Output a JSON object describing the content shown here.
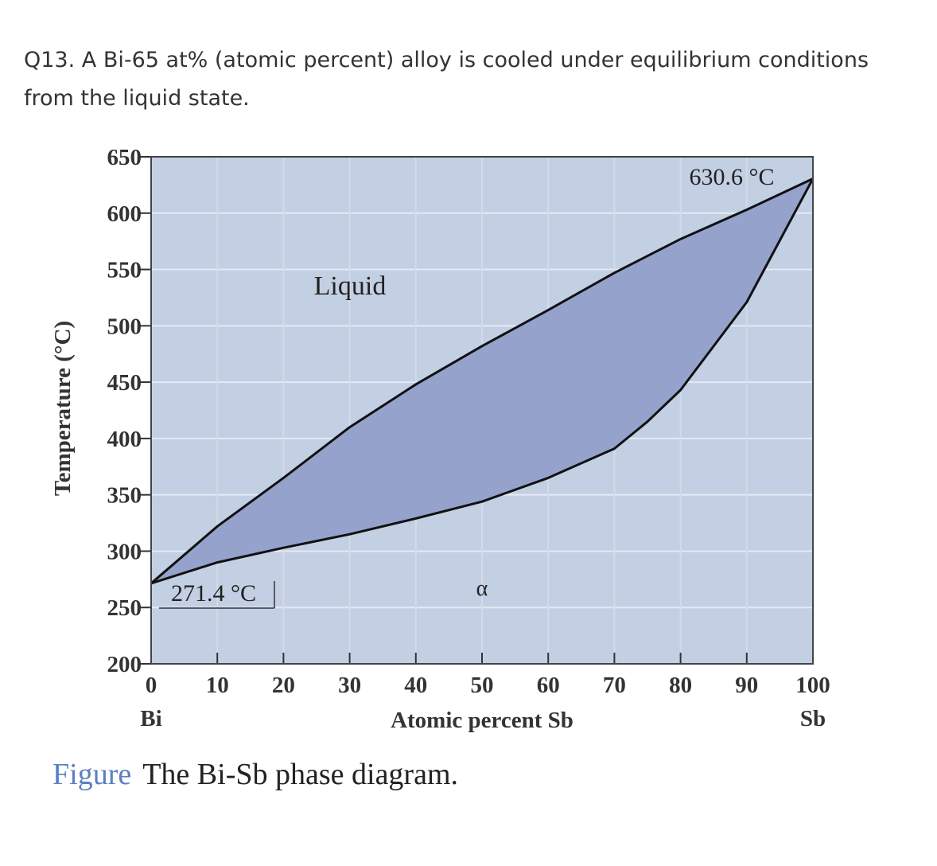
{
  "question": {
    "lines": [
      "Q13. A Bi-65 at% (atomic percent) alloy is cooled under equilibrium conditions",
      "from the liquid state."
    ]
  },
  "chart_data": {
    "type": "line",
    "ylabel": "Temperature (°C)",
    "xlabel": "Atomic percent Sb",
    "x_end_labels": [
      "Bi",
      "Sb"
    ],
    "annotations": [
      "Liquid",
      "α",
      "271.4 °C",
      "630.6 °C"
    ],
    "xlim": [
      0,
      100
    ],
    "xticks": [
      0,
      10,
      20,
      30,
      40,
      50,
      60,
      70,
      80,
      90,
      100
    ],
    "ylim": [
      200,
      650
    ],
    "yticks": [
      200,
      250,
      300,
      350,
      400,
      450,
      500,
      550,
      600,
      650
    ],
    "grid": true,
    "fill_between": true,
    "fill_color": "#95a3cc",
    "background": "#c3cfe3",
    "series": [
      {
        "color": "#111111",
        "x": [
          0,
          10,
          20,
          30,
          40,
          50,
          60,
          70,
          80,
          90,
          100
        ],
        "values": [
          271.4,
          322,
          365,
          410,
          448,
          482,
          514,
          547,
          577,
          603,
          630.6
        ]
      },
      {
        "color": "#111111",
        "x": [
          0,
          10,
          20,
          30,
          40,
          50,
          60,
          70,
          75,
          80,
          90,
          100
        ],
        "values": [
          271.4,
          290,
          303,
          315,
          329,
          344,
          365,
          391,
          415,
          443,
          521,
          630.6
        ]
      }
    ]
  },
  "caption": {
    "label": "Figure",
    "text": "The Bi-Sb phase diagram."
  }
}
